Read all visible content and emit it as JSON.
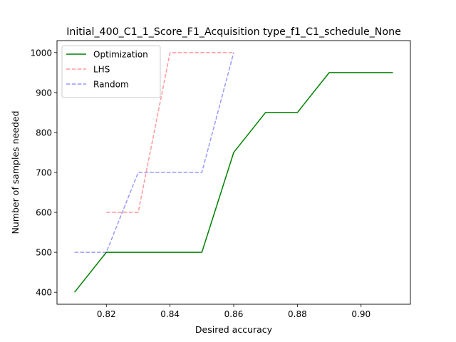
{
  "chart_data": {
    "type": "line",
    "title": "Initial_400_C1_1_Score_F1_Acquisition type_f1_C1_schedule_None",
    "xlabel": "Desired accuracy",
    "ylabel": "Number of samples needed",
    "xlim": [
      0.8045,
      0.9155
    ],
    "ylim": [
      370,
      1030
    ],
    "x_ticks": [
      0.82,
      0.84,
      0.86,
      0.88,
      0.9
    ],
    "x_tick_labels": [
      "0.82",
      "0.84",
      "0.86",
      "0.88",
      "0.90"
    ],
    "y_ticks": [
      400,
      500,
      600,
      700,
      800,
      900,
      1000
    ],
    "y_tick_labels": [
      "400",
      "500",
      "600",
      "700",
      "800",
      "900",
      "1000"
    ],
    "grid": false,
    "legend_position": "top-left",
    "series": [
      {
        "name": "Optimization",
        "color": "#008000",
        "style": "solid",
        "opacity": 1,
        "points": [
          [
            0.81,
            400
          ],
          [
            0.82,
            500
          ],
          [
            0.83,
            500
          ],
          [
            0.84,
            500
          ],
          [
            0.85,
            500
          ],
          [
            0.86,
            750
          ],
          [
            0.87,
            850
          ],
          [
            0.88,
            850
          ],
          [
            0.89,
            950
          ],
          [
            0.9,
            950
          ],
          [
            0.91,
            950
          ]
        ]
      },
      {
        "name": "LHS",
        "color": "#ff0000",
        "style": "dashed",
        "opacity": 0.4,
        "points": [
          [
            0.82,
            600
          ],
          [
            0.83,
            600
          ],
          [
            0.84,
            1000
          ],
          [
            0.85,
            1000
          ],
          [
            0.86,
            1000
          ]
        ]
      },
      {
        "name": "Random",
        "color": "#0000ff",
        "style": "dashed",
        "opacity": 0.4,
        "points": [
          [
            0.81,
            500
          ],
          [
            0.82,
            500
          ],
          [
            0.83,
            700
          ],
          [
            0.84,
            700
          ],
          [
            0.85,
            700
          ],
          [
            0.86,
            1000
          ]
        ]
      }
    ]
  }
}
